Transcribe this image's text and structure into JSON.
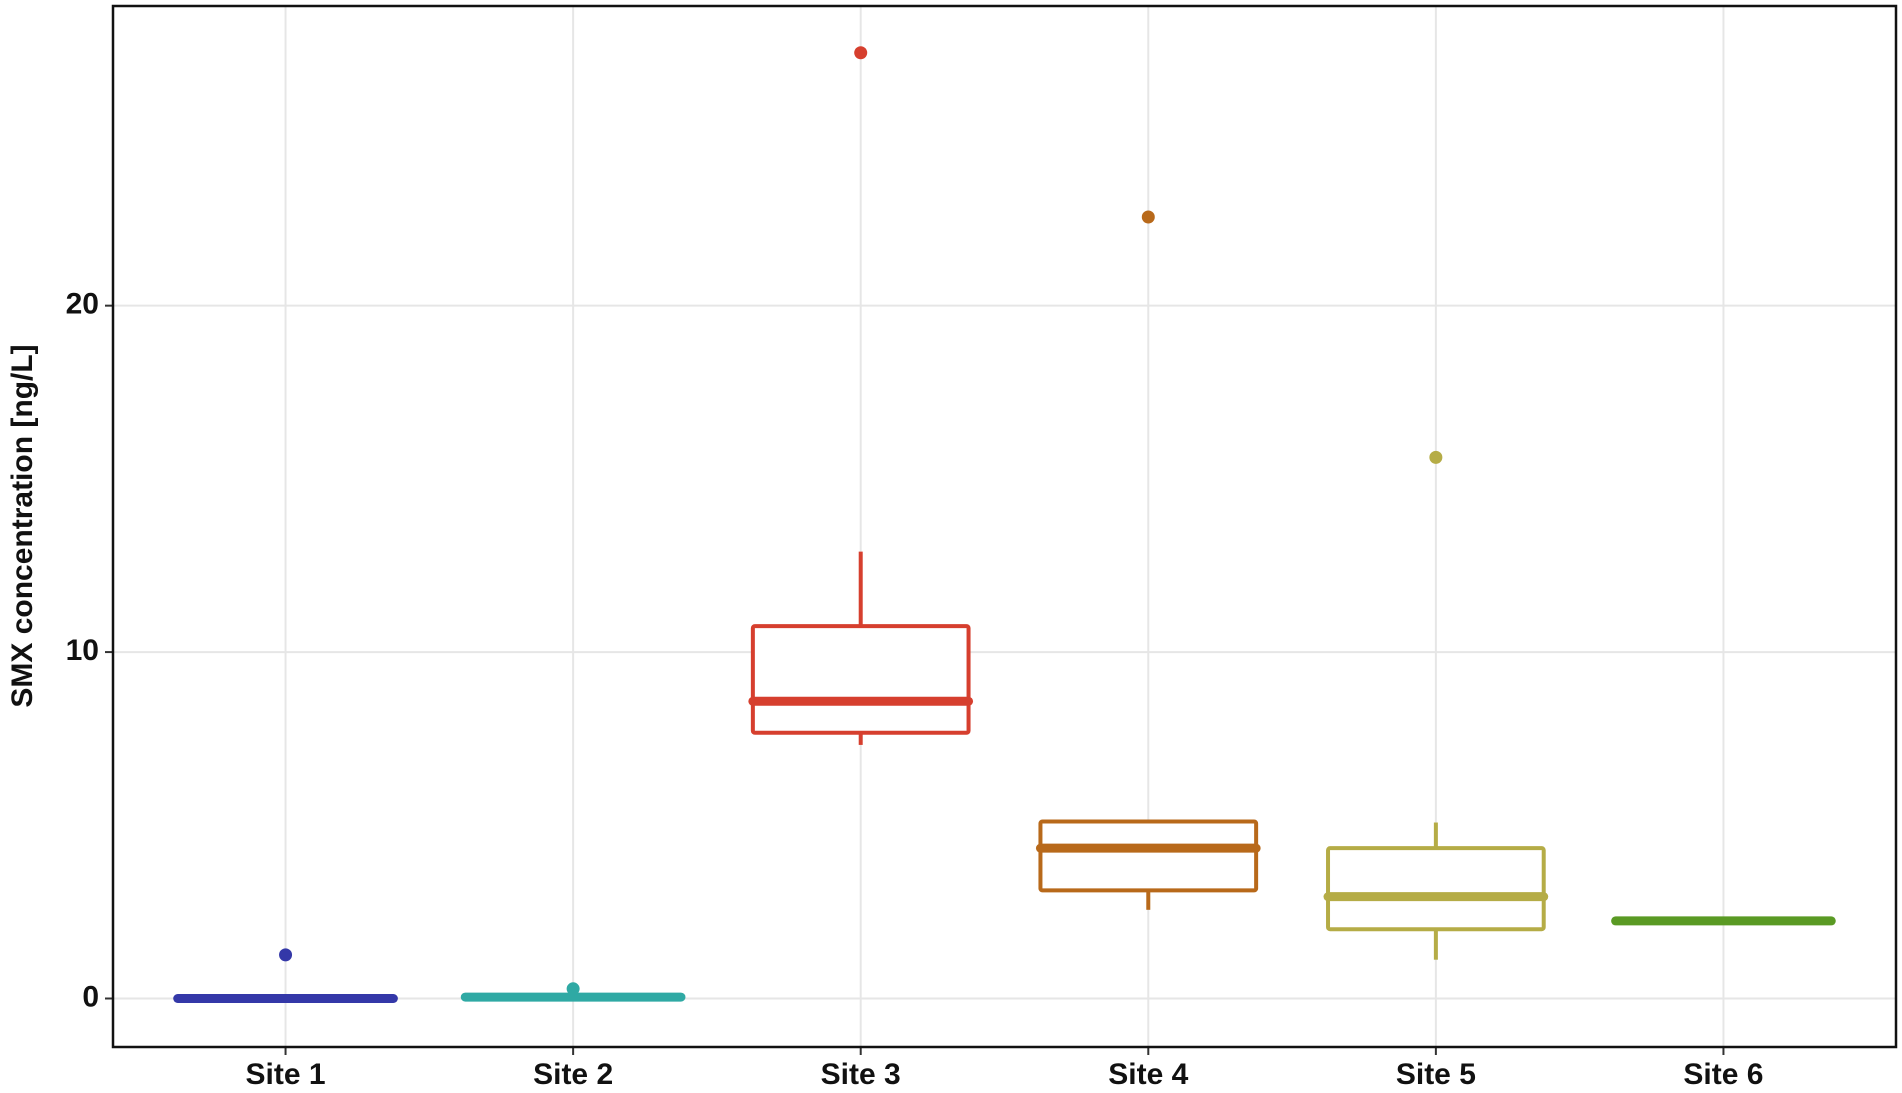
{
  "chart_data": {
    "type": "box",
    "y_label": "SMX concentration [ng/L]",
    "categories": [
      "Site 1",
      "Site 2",
      "Site 3",
      "Site 4",
      "Site 5",
      "Site 6"
    ],
    "boxes": [
      {
        "color": "#3438a8",
        "whisker_low": 0,
        "q1": 0,
        "median": 0,
        "q3": 0,
        "whisker_high": 0,
        "outliers": [
          1.26
        ]
      },
      {
        "color": "#2fa9a4",
        "whisker_low": 0.02,
        "q1": 0.02,
        "median": 0.04,
        "q3": 0.06,
        "whisker_high": 0.06,
        "outliers": [
          0.28
        ]
      },
      {
        "color": "#d63f2e",
        "whisker_low": 7.32,
        "q1": 7.67,
        "median": 8.58,
        "q3": 10.75,
        "whisker_high": 12.9,
        "outliers": [
          27.3
        ]
      },
      {
        "color": "#b8691a",
        "whisker_low": 2.56,
        "q1": 3.12,
        "median": 4.34,
        "q3": 5.11,
        "whisker_high": 5.11,
        "outliers": [
          22.56
        ]
      },
      {
        "color": "#b5ac46",
        "whisker_low": 1.12,
        "q1": 2.0,
        "median": 2.94,
        "q3": 4.34,
        "whisker_high": 5.08,
        "outliers": [
          15.62
        ]
      },
      {
        "color": "#5a9a24",
        "whisker_low": 2.24,
        "q1": 2.24,
        "median": 2.24,
        "q3": 2.24,
        "whisker_high": 2.24,
        "outliers": []
      }
    ],
    "ylim": [
      -1.4,
      28.65
    ],
    "yticks": [
      0,
      10,
      20
    ],
    "grid": true
  }
}
